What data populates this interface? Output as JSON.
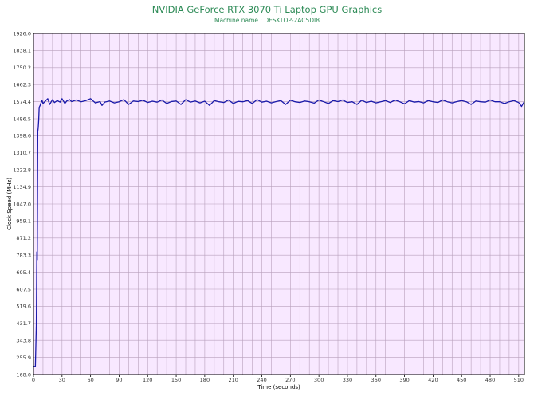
{
  "title": "NVIDIA GeForce RTX 3070 Ti Laptop GPU Graphics",
  "subtitle": "Machine name : DESKTOP-2AC5DI8",
  "chart_data": {
    "type": "line",
    "xlabel": "Time (seconds)",
    "ylabel": "Clock Speed (MHz)",
    "xlim": [
      0,
      516
    ],
    "ylim": [
      168.0,
      1926.0
    ],
    "x_ticks": [
      0,
      30,
      60,
      90,
      120,
      150,
      180,
      210,
      240,
      270,
      300,
      330,
      360,
      390,
      420,
      450,
      480,
      510
    ],
    "y_ticks": [
      168.0,
      255.9,
      343.8,
      431.7,
      519.6,
      607.5,
      695.4,
      783.3,
      871.2,
      959.1,
      1047.0,
      1134.9,
      1222.8,
      1310.7,
      1398.6,
      1486.5,
      1574.4,
      1662.3,
      1750.2,
      1838.1,
      1926.0
    ],
    "x_minor_step": 10,
    "grid": true,
    "colors": {
      "plot_background": "#f8e8ff",
      "grid": "#b8a0bc",
      "line": "#1a1aaa",
      "text": "#2e8b57"
    },
    "series": [
      {
        "name": "",
        "x": [
          0,
          1,
          2,
          3,
          3.5,
          4,
          4.5,
          5,
          5.5,
          6,
          7,
          8,
          9,
          10,
          12,
          15,
          17,
          20,
          22,
          25,
          28,
          30,
          33,
          35,
          38,
          40,
          45,
          50,
          55,
          60,
          65,
          70,
          72,
          75,
          80,
          85,
          90,
          95,
          100,
          105,
          110,
          115,
          120,
          125,
          130,
          135,
          140,
          145,
          150,
          155,
          160,
          165,
          170,
          175,
          180,
          185,
          190,
          195,
          200,
          205,
          210,
          215,
          220,
          225,
          230,
          235,
          240,
          245,
          250,
          255,
          260,
          265,
          270,
          275,
          280,
          285,
          290,
          295,
          300,
          305,
          310,
          315,
          320,
          325,
          330,
          335,
          340,
          345,
          350,
          355,
          360,
          365,
          370,
          375,
          380,
          385,
          390,
          395,
          400,
          405,
          410,
          415,
          420,
          425,
          430,
          435,
          440,
          445,
          450,
          455,
          460,
          465,
          470,
          475,
          480,
          485,
          490,
          495,
          500,
          505,
          510,
          513,
          516
        ],
        "y": [
          210,
          210,
          210,
          420,
          800,
          760,
          1420,
          1440,
          1480,
          1545,
          1555,
          1570,
          1580,
          1565,
          1575,
          1590,
          1560,
          1585,
          1570,
          1580,
          1572,
          1590,
          1565,
          1578,
          1585,
          1575,
          1583,
          1574,
          1580,
          1590,
          1568,
          1575,
          1555,
          1572,
          1578,
          1568,
          1574,
          1585,
          1560,
          1578,
          1575,
          1582,
          1570,
          1577,
          1572,
          1583,
          1565,
          1575,
          1578,
          1560,
          1585,
          1572,
          1578,
          1568,
          1577,
          1555,
          1580,
          1574,
          1570,
          1583,
          1565,
          1576,
          1574,
          1580,
          1565,
          1585,
          1572,
          1577,
          1568,
          1575,
          1580,
          1560,
          1582,
          1574,
          1570,
          1578,
          1574,
          1567,
          1583,
          1574,
          1565,
          1580,
          1575,
          1583,
          1570,
          1574,
          1560,
          1582,
          1570,
          1577,
          1568,
          1574,
          1580,
          1570,
          1583,
          1574,
          1563,
          1580,
          1572,
          1575,
          1568,
          1580,
          1574,
          1570,
          1583,
          1574,
          1568,
          1575,
          1580,
          1574,
          1560,
          1578,
          1574,
          1572,
          1583,
          1574,
          1574,
          1565,
          1574,
          1580,
          1570,
          1550,
          1576
        ]
      }
    ]
  }
}
